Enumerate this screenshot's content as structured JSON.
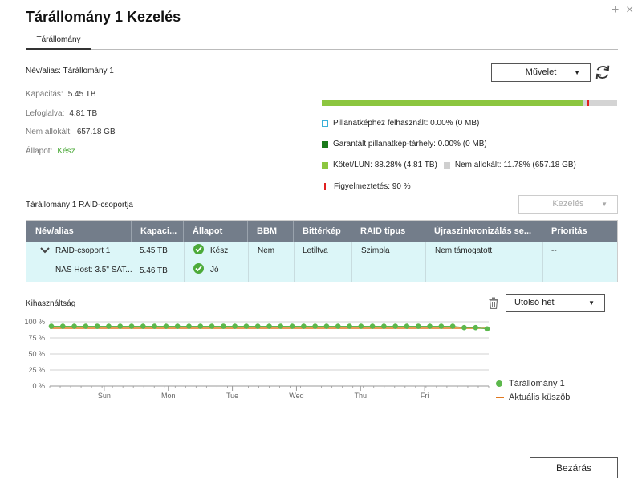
{
  "window": {
    "title": "Tárállomány 1 Kezelés",
    "plus_glyph": "+",
    "close_glyph": "×"
  },
  "tabs": [
    {
      "label": "Tárállomány",
      "active": true
    }
  ],
  "pool": {
    "name": "Név/alias: Tárállomány 1",
    "capacity_label": "Kapacitás:",
    "capacity_value": "5.45 TB",
    "allocated_label": "Lefoglalva:",
    "allocated_value": "4.81 TB",
    "unallocated_label": "Nem allokált:",
    "unallocated_value": "657.18 GB",
    "status_label": "Állapot:",
    "status_value": "Kész"
  },
  "action_select": {
    "label": "Művelet",
    "caret": "▼"
  },
  "refresh": {
    "icon": "refresh-icon"
  },
  "usage_bar": {
    "used_percent": 88.28,
    "warning_percent": 90
  },
  "legend": {
    "snapshot_used": "Pillanatképhez felhasznált: 0.00% (0 MB)",
    "guaranteed_snapshot": "Garantált pillanatkép-tárhely: 0.00% (0 MB)",
    "volume_lun": "Kötet/LUN: 88.28% (4.81 TB)",
    "unallocated": "Nem allokált: 11.78% (657.18 GB)",
    "warning": "Figyelmeztetés: 90 %"
  },
  "colors": {
    "snapshot": "#3ab0d8",
    "guaranteed": "#1a7a1a",
    "volume": "#8cc63f",
    "unallocated": "#cfcfcf",
    "warning": "#e02020",
    "threshold": "#e07820",
    "series": "#5cb84c"
  },
  "raid_section": {
    "title": "Tárállomány 1 RAID-csoportja",
    "manage_select": {
      "label": "Kezelés",
      "caret": "▼"
    }
  },
  "raid_table": {
    "headers": [
      "Név/alias",
      "Kapaci...",
      "Állapot",
      "BBM",
      "Bittérkép",
      "RAID típus",
      "Újraszinkronizálás se...",
      "Prioritás"
    ],
    "group_row": {
      "expand_glyph": "⌄",
      "name": "RAID-csoport 1",
      "capacity": "5.45 TB",
      "status": "Kész",
      "bbm": "Nem",
      "bitmap": "Letiltva",
      "raid_type": "Szimpla",
      "resync": "Nem támogatott",
      "priority": "--"
    },
    "disk_row": {
      "name": "NAS Host: 3.5\" SAT...",
      "capacity": "5.46 TB",
      "status": "Jó"
    }
  },
  "utilization": {
    "title": "Kihasználtság",
    "range_select": {
      "label": "Utolsó hét",
      "caret": "▼"
    }
  },
  "chart_data": {
    "type": "line",
    "title": "Kihasználtság",
    "y_ticks": [
      "0 %",
      "25 %",
      "50 %",
      "75 %",
      "100 %"
    ],
    "ylim": [
      0,
      100
    ],
    "x_ticks": [
      "Sun",
      "Mon",
      "Tue",
      "Wed",
      "Thu",
      "Fri"
    ],
    "grid": true,
    "legend_position": "right",
    "series": [
      {
        "name": "Tárállomány 1",
        "values": [
          93,
          93,
          93,
          93,
          93,
          93,
          93,
          93,
          93,
          93,
          93,
          93,
          93,
          93,
          93,
          93,
          93,
          93,
          93,
          93,
          93,
          93,
          93,
          93,
          93,
          93,
          93,
          93,
          93,
          93,
          93,
          93,
          93,
          93,
          93,
          93,
          91,
          91,
          89
        ]
      },
      {
        "name": "Aktuális küszöb",
        "values": [
          90
        ]
      }
    ]
  },
  "footer": {
    "close_label": "Bezárás"
  }
}
